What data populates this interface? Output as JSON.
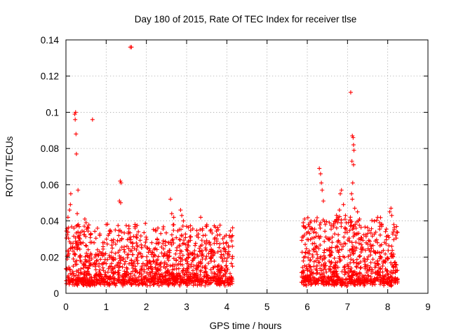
{
  "chart_data": {
    "type": "scatter",
    "title": "Day 180 of 2015, Rate Of TEC Index for receiver tlse",
    "xlabel": "GPS time / hours",
    "ylabel": "ROTI / TECUs",
    "xlim": [
      0,
      9
    ],
    "ylim": [
      0,
      0.14
    ],
    "xticks": [
      "0",
      "1",
      "2",
      "3",
      "4",
      "5",
      "6",
      "7",
      "8",
      "9"
    ],
    "yticks": [
      "0",
      "0.02",
      "0.04",
      "0.06",
      "0.08",
      "0.1",
      "0.12",
      "0.14"
    ],
    "grid": true,
    "marker": "+",
    "color": "#ff0000",
    "segments": [
      {
        "x_start": 0.0,
        "x_end": 4.15,
        "typical_range": [
          0.004,
          0.035
        ]
      },
      {
        "x_start": 5.85,
        "x_end": 8.25,
        "typical_range": [
          0.004,
          0.04
        ]
      }
    ],
    "series": [
      {
        "name": "tlse",
        "points": [
          [
            0.22,
            0.099
          ],
          [
            0.24,
            0.1
          ],
          [
            0.23,
            0.096
          ],
          [
            0.25,
            0.088
          ],
          [
            0.26,
            0.077
          ],
          [
            0.66,
            0.096
          ],
          [
            1.6,
            0.136
          ],
          [
            1.63,
            0.136
          ],
          [
            1.35,
            0.062
          ],
          [
            1.37,
            0.061
          ],
          [
            1.33,
            0.051
          ],
          [
            1.36,
            0.05
          ],
          [
            0.12,
            0.055
          ],
          [
            0.11,
            0.049
          ],
          [
            0.09,
            0.046
          ],
          [
            0.05,
            0.042
          ],
          [
            0.3,
            0.057
          ],
          [
            0.28,
            0.044
          ],
          [
            0.31,
            0.038
          ],
          [
            0.2,
            0.036
          ],
          [
            0.47,
            0.041
          ],
          [
            0.5,
            0.039
          ],
          [
            0.55,
            0.036
          ],
          [
            0.62,
            0.033
          ],
          [
            0.95,
            0.028
          ],
          [
            1.0,
            0.038
          ],
          [
            1.05,
            0.032
          ],
          [
            1.55,
            0.033
          ],
          [
            1.6,
            0.031
          ],
          [
            1.72,
            0.036
          ],
          [
            1.8,
            0.034
          ],
          [
            2.6,
            0.052
          ],
          [
            2.63,
            0.044
          ],
          [
            2.68,
            0.042
          ],
          [
            2.85,
            0.046
          ],
          [
            2.88,
            0.043
          ],
          [
            2.92,
            0.04
          ],
          [
            3.0,
            0.037
          ],
          [
            3.35,
            0.042
          ],
          [
            3.5,
            0.037
          ],
          [
            3.6,
            0.035
          ],
          [
            3.75,
            0.03
          ],
          [
            4.08,
            0.031
          ],
          [
            4.12,
            0.029
          ],
          [
            5.9,
            0.039
          ],
          [
            5.95,
            0.036
          ],
          [
            6.05,
            0.037
          ],
          [
            6.1,
            0.036
          ],
          [
            6.3,
            0.069
          ],
          [
            6.33,
            0.066
          ],
          [
            6.35,
            0.061
          ],
          [
            6.37,
            0.057
          ],
          [
            6.4,
            0.051
          ],
          [
            6.45,
            0.038
          ],
          [
            6.55,
            0.039
          ],
          [
            6.85,
            0.057
          ],
          [
            6.82,
            0.055
          ],
          [
            6.9,
            0.049
          ],
          [
            6.8,
            0.046
          ],
          [
            6.95,
            0.043
          ],
          [
            7.02,
            0.039
          ],
          [
            7.08,
            0.111
          ],
          [
            7.12,
            0.087
          ],
          [
            7.14,
            0.086
          ],
          [
            7.15,
            0.082
          ],
          [
            7.16,
            0.079
          ],
          [
            7.11,
            0.073
          ],
          [
            7.15,
            0.071
          ],
          [
            7.13,
            0.061
          ],
          [
            7.1,
            0.055
          ],
          [
            7.12,
            0.052
          ],
          [
            7.18,
            0.047
          ],
          [
            7.25,
            0.045
          ],
          [
            7.3,
            0.041
          ],
          [
            7.5,
            0.033
          ],
          [
            7.75,
            0.042
          ],
          [
            7.8,
            0.039
          ],
          [
            7.85,
            0.037
          ],
          [
            8.05,
            0.045
          ],
          [
            8.08,
            0.047
          ],
          [
            8.1,
            0.043
          ],
          [
            8.15,
            0.038
          ],
          [
            8.2,
            0.032
          ]
        ]
      }
    ]
  }
}
